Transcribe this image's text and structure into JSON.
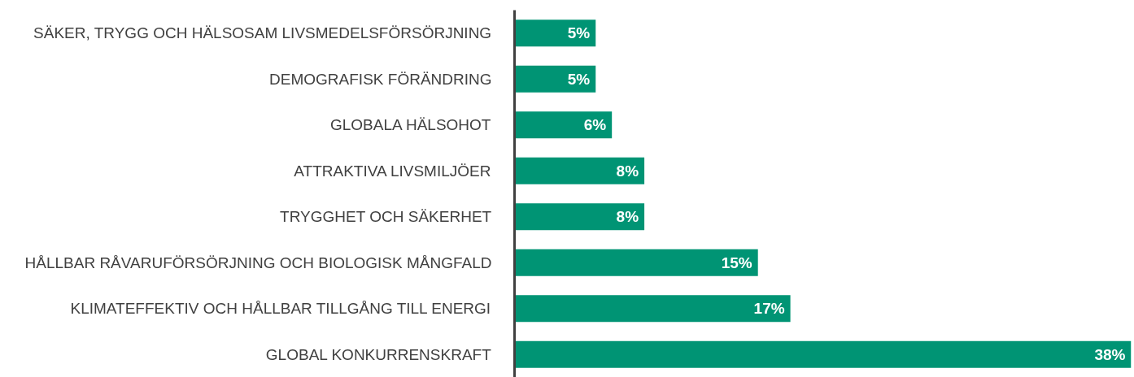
{
  "chart_data": {
    "type": "bar",
    "orientation": "horizontal",
    "categories": [
      "SÄKER, TRYGG OCH HÄLSOSAM LIVSMEDELSFÖRSÖRJNING",
      "DEMOGRAFISK FÖRÄNDRING",
      "GLOBALA HÄLSOHOT",
      "ATTRAKTIVA LIVSMILJÖER",
      "TRYGGHET OCH SÄKERHET",
      "HÅLLBAR RÅVARUFÖRSÖRJNING OCH BIOLOGISK MÅNGFALD",
      "KLIMATEFFEKTIV OCH HÅLLBAR TILLGÅNG TILL ENERGI",
      "GLOBAL KONKURRENSKRAFT"
    ],
    "values": [
      5,
      5,
      6,
      8,
      8,
      15,
      17,
      38
    ],
    "value_labels": [
      "5%",
      "5%",
      "6%",
      "8%",
      "8%",
      "15%",
      "17%",
      "38%"
    ],
    "color": "#009474"
  }
}
